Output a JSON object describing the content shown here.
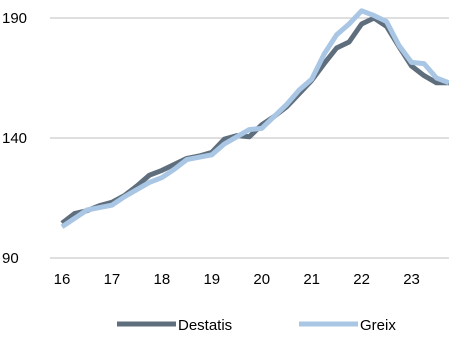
{
  "chart_data": {
    "type": "line",
    "title": "",
    "xlabel": "",
    "ylabel": "",
    "xlim": [
      2016,
      2023.75
    ],
    "ylim": [
      90,
      190
    ],
    "x_ticks": [
      16,
      17,
      18,
      19,
      20,
      21,
      22,
      23
    ],
    "x_tick_labels": [
      "16",
      "17",
      "18",
      "19",
      "20",
      "21",
      "22",
      "23"
    ],
    "y_ticks": [
      90,
      140,
      190
    ],
    "y_tick_labels": [
      "90",
      "140",
      "190"
    ],
    "grid": "horizontal",
    "legend_position": "bottom",
    "x": [
      2016.0,
      2016.25,
      2016.5,
      2016.75,
      2017.0,
      2017.25,
      2017.5,
      2017.75,
      2018.0,
      2018.25,
      2018.5,
      2018.75,
      2019.0,
      2019.25,
      2019.5,
      2019.75,
      2020.0,
      2020.25,
      2020.5,
      2020.75,
      2021.0,
      2021.25,
      2021.5,
      2021.75,
      2022.0,
      2022.25,
      2022.5,
      2022.75,
      2023.0,
      2023.25,
      2023.5,
      2023.75
    ],
    "series": [
      {
        "name": "Destatis",
        "color": "#5f6e7c",
        "values": [
          104.5,
          108.5,
          109.7,
          111.8,
          113.2,
          116.0,
          120.0,
          124.5,
          126.5,
          129.0,
          131.5,
          132.5,
          134.0,
          139.5,
          141.0,
          140.5,
          145.5,
          149.0,
          153.0,
          158.5,
          164.0,
          171.0,
          177.5,
          180.0,
          187.5,
          190.0,
          186.5,
          178.0,
          170.0,
          166.0,
          163.0,
          163.0
        ]
      },
      {
        "name": "Greix",
        "color": "#a9c6e4",
        "values": [
          103.0,
          106.5,
          110.0,
          111.0,
          112.0,
          115.5,
          118.5,
          121.5,
          123.5,
          127.0,
          131.0,
          132.0,
          133.0,
          137.5,
          140.5,
          143.5,
          144.0,
          149.0,
          154.0,
          160.0,
          164.5,
          175.0,
          183.0,
          187.5,
          193.0,
          191.0,
          188.5,
          178.5,
          171.5,
          171.0,
          165.0,
          163.0
        ]
      }
    ]
  }
}
